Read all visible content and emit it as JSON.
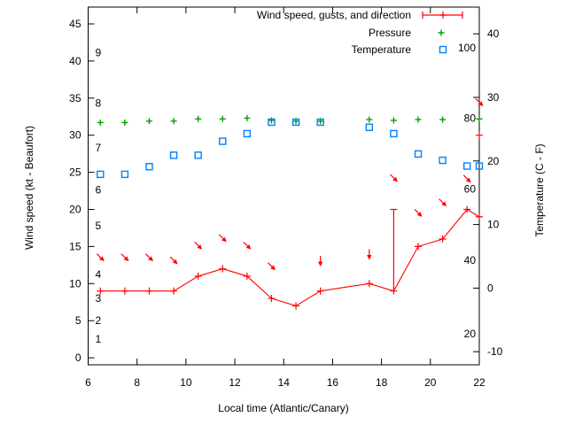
{
  "figure": {
    "background": "#ffffff",
    "xlabel": "Local time (Atlantic/Canary)",
    "ylabel_left": "Wind speed (kt - Beaufort)",
    "ylabel_right": "Temperature (C - F)"
  },
  "chart_data": {
    "type": "line",
    "title": "",
    "xlabel": "Local time (Atlantic/Canary)",
    "ylabel": "Wind speed (kt - Beaufort)",
    "y2label": "Temperature (C - F)",
    "xlim": [
      6,
      22
    ],
    "ylim_left_kt": [
      -1,
      47.3
    ],
    "ylim_right_c": [
      -12.1,
      44.2
    ],
    "grid": false,
    "legend_position": "top-right-inside",
    "xticks": [
      6,
      8,
      10,
      12,
      14,
      16,
      18,
      20,
      22
    ],
    "yticks_left_kt": [
      0,
      5,
      10,
      15,
      20,
      25,
      30,
      35,
      40,
      45
    ],
    "yticks_right_c": [
      -10,
      0,
      10,
      20,
      30,
      40
    ],
    "beaufort_inner_labels": [
      {
        "label": "9",
        "kt": 41.1
      },
      {
        "label": "8",
        "kt": 34.3
      },
      {
        "label": "7",
        "kt": 28.3
      },
      {
        "label": "6",
        "kt": 22.6
      },
      {
        "label": "5",
        "kt": 17.8
      },
      {
        "label": "4",
        "kt": 11.2
      },
      {
        "label": "3",
        "kt": 8.0
      },
      {
        "label": "2",
        "kt": 5.0
      },
      {
        "label": "1",
        "kt": 2.5
      }
    ],
    "fahrenheit_inner_labels": [
      {
        "label": "100",
        "c": 37.8
      },
      {
        "label": "80",
        "c": 26.7
      },
      {
        "label": "60",
        "c": 15.6
      },
      {
        "label": "40",
        "c": 4.4
      },
      {
        "label": "20",
        "c": -7.2
      }
    ],
    "colors": {
      "wind": "#ff0000",
      "pressure": "#00a000",
      "temperature": "#0080ff"
    },
    "series": [
      {
        "name": "Wind speed, gusts, and direction",
        "key": "wind",
        "marker": "plus",
        "line": true,
        "axis": "left-kt",
        "points": [
          [
            6.5,
            9
          ],
          [
            7.5,
            9
          ],
          [
            8.5,
            9
          ],
          [
            9.5,
            9
          ],
          [
            10.5,
            11
          ],
          [
            11.5,
            12
          ],
          [
            12.5,
            11
          ],
          [
            13.5,
            8
          ],
          [
            14.5,
            7
          ],
          [
            15.5,
            9
          ],
          [
            17.5,
            10
          ],
          [
            18.5,
            9
          ],
          [
            19.5,
            15
          ],
          [
            20.5,
            16
          ],
          [
            21.5,
            20
          ],
          [
            22,
            19
          ]
        ]
      },
      {
        "name": "Pressure",
        "key": "pressure",
        "marker": "plus",
        "line": false,
        "axis": "left-kt",
        "points": [
          [
            6.5,
            31.7
          ],
          [
            7.5,
            31.7
          ],
          [
            8.5,
            31.9
          ],
          [
            9.5,
            31.9
          ],
          [
            10.5,
            32.2
          ],
          [
            11.5,
            32.2
          ],
          [
            12.5,
            32.3
          ],
          [
            13.5,
            32.0
          ],
          [
            14.5,
            31.9
          ],
          [
            15.5,
            31.9
          ],
          [
            17.5,
            32.1
          ],
          [
            18.5,
            32.0
          ],
          [
            19.5,
            32.1
          ],
          [
            20.5,
            32.1
          ],
          [
            22,
            32.2
          ]
        ]
      },
      {
        "name": "Temperature",
        "key": "temperature",
        "marker": "square",
        "line": false,
        "axis": "right-c",
        "points": [
          [
            6.5,
            17.9
          ],
          [
            7.5,
            17.9
          ],
          [
            8.5,
            19.1
          ],
          [
            9.5,
            20.9
          ],
          [
            10.5,
            20.9
          ],
          [
            11.5,
            23.1
          ],
          [
            12.5,
            24.3
          ],
          [
            13.5,
            26.1
          ],
          [
            14.5,
            26.1
          ],
          [
            15.5,
            26.1
          ],
          [
            17.5,
            25.3
          ],
          [
            18.5,
            24.3
          ],
          [
            19.5,
            21.1
          ],
          [
            20.5,
            20.1
          ],
          [
            21.5,
            19.2
          ],
          [
            22,
            19.2
          ]
        ]
      }
    ],
    "gust_bar": {
      "x": 18.5,
      "from_kt": 9,
      "to_kt": 20
    },
    "gust_marker": {
      "x": 22,
      "kt": 30
    },
    "direction_arrows": [
      {
        "x": 6.5,
        "kt": 13.0,
        "dir": "se"
      },
      {
        "x": 7.5,
        "kt": 13.0,
        "dir": "se"
      },
      {
        "x": 8.5,
        "kt": 13.0,
        "dir": "se"
      },
      {
        "x": 9.5,
        "kt": 12.6,
        "dir": "se"
      },
      {
        "x": 10.5,
        "kt": 14.6,
        "dir": "se"
      },
      {
        "x": 11.5,
        "kt": 15.6,
        "dir": "se"
      },
      {
        "x": 12.5,
        "kt": 14.6,
        "dir": "se"
      },
      {
        "x": 13.5,
        "kt": 11.8,
        "dir": "se"
      },
      {
        "x": 15.5,
        "kt": 12.3,
        "dir": "s"
      },
      {
        "x": 17.5,
        "kt": 13.2,
        "dir": "s"
      },
      {
        "x": 18.5,
        "kt": 23.7,
        "dir": "se"
      },
      {
        "x": 19.5,
        "kt": 19.0,
        "dir": "se"
      },
      {
        "x": 20.5,
        "kt": 20.4,
        "dir": "se"
      },
      {
        "x": 21.5,
        "kt": 23.6,
        "dir": "se"
      },
      {
        "x": 22,
        "kt": 33.9,
        "dir": "se"
      }
    ]
  }
}
